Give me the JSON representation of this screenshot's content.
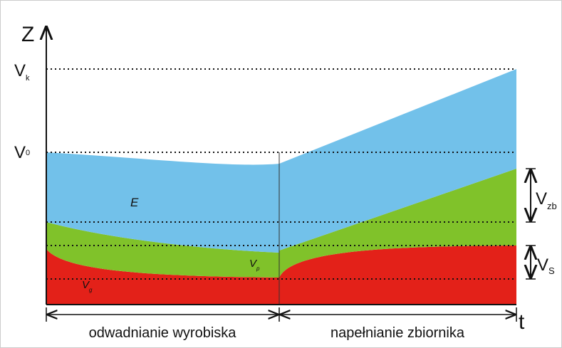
{
  "axes": {
    "y_label": "Z",
    "x_label": "t"
  },
  "levels": {
    "vk": {
      "main": "V",
      "sub": "k"
    },
    "v0": {
      "main": "V",
      "sub": "0"
    }
  },
  "regions": {
    "e": "E",
    "vp": {
      "main": "V",
      "sub": "p"
    },
    "vg": {
      "main": "V",
      "sub": "g"
    }
  },
  "brackets": {
    "vzb": {
      "main": "V",
      "sub": "zb"
    },
    "vs": {
      "main": "V",
      "sub": "S"
    }
  },
  "phases": [
    "odwadnianie wyrobiska",
    "napełnianie zbiornika"
  ]
}
